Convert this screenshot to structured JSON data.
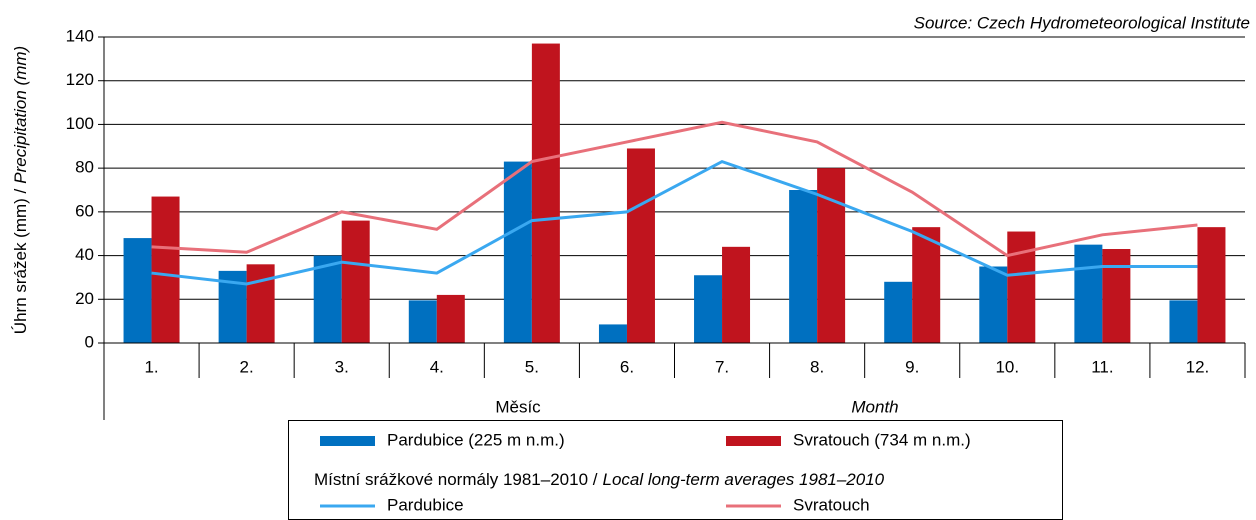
{
  "chart_data": {
    "type": "bar",
    "source": "Source: Czech Hydrometeorological Institute",
    "y_label": [
      "Úhrn srážek (mm) /",
      "Precipitation (mm)"
    ],
    "x_label": [
      "Měsíc",
      "Month"
    ],
    "categories": [
      "1.",
      "2.",
      "3.",
      "4.",
      "5.",
      "6.",
      "7.",
      "8.",
      "9.",
      "10.",
      "11.",
      "12."
    ],
    "ylim": [
      0,
      140
    ],
    "yticks": [
      0,
      20,
      40,
      60,
      80,
      100,
      120,
      140
    ],
    "legend_subtitle": [
      "Místní srážkové normály 1981–2010 /",
      "Local long-term averages 1981–2010"
    ],
    "series": [
      {
        "name": "Pardubice (225 m n.m.)",
        "type": "bar",
        "color": "#0070c0",
        "values": [
          48,
          33,
          40,
          19.5,
          83,
          8.5,
          31,
          70,
          28,
          35,
          45,
          19.5
        ]
      },
      {
        "name": "Svratouch (734 m n.m.)",
        "type": "bar",
        "color": "#c0141e",
        "values": [
          67,
          36,
          56,
          22,
          137,
          89,
          44,
          80,
          53,
          51,
          43,
          53
        ]
      },
      {
        "name": "Pardubice",
        "type": "line",
        "color": "#3aa8f0",
        "values": [
          32,
          27,
          37,
          32,
          56,
          60,
          83,
          68,
          51,
          31,
          35,
          35
        ]
      },
      {
        "name": "Svratouch",
        "type": "line",
        "color": "#e8707a",
        "values": [
          44,
          41.5,
          60,
          52,
          83,
          92,
          101,
          92,
          69,
          40,
          49.5,
          54
        ]
      }
    ]
  }
}
